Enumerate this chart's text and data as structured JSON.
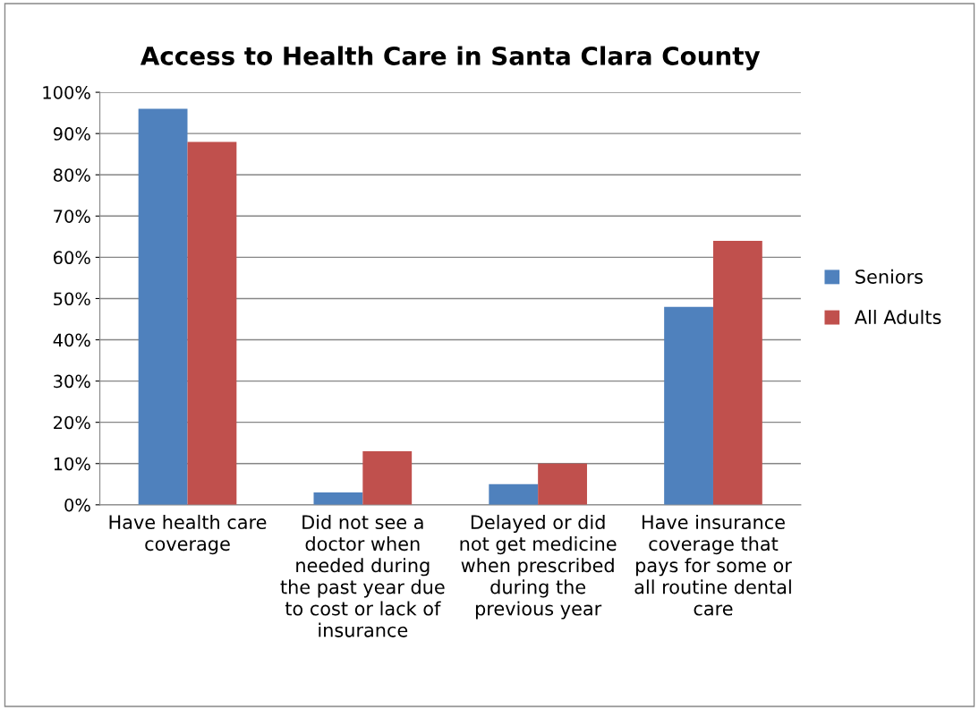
{
  "chart_data": {
    "type": "bar",
    "title": "Access to Health Care in Santa Clara County",
    "categories": [
      "Have health care\ncoverage",
      "Did not see a\ndoctor when\nneeded during\nthe past year due\nto cost or lack of\ninsurance",
      "Delayed or did\nnot get medicine\nwhen prescribed\nduring the\nprevious year",
      "Have insurance\ncoverage that\npays for some or\nall routine dental\ncare"
    ],
    "series": [
      {
        "name": "Seniors",
        "color": "#4f81bd",
        "values": [
          96,
          3,
          5,
          48
        ]
      },
      {
        "name": "All Adults",
        "color": "#c0504d",
        "values": [
          88,
          13,
          10,
          64
        ]
      }
    ],
    "ylim": [
      0,
      100
    ],
    "yticks": [
      {
        "value": 0,
        "label": "0%"
      },
      {
        "value": 10,
        "label": "10%"
      },
      {
        "value": 20,
        "label": "20%"
      },
      {
        "value": 30,
        "label": "30%"
      },
      {
        "value": 40,
        "label": "40%"
      },
      {
        "value": 50,
        "label": "50%"
      },
      {
        "value": 60,
        "label": "60%"
      },
      {
        "value": 70,
        "label": "70%"
      },
      {
        "value": 80,
        "label": "80%"
      },
      {
        "value": 90,
        "label": "90%"
      },
      {
        "value": 100,
        "label": "100%"
      }
    ],
    "grid": "y",
    "legend": "right"
  }
}
